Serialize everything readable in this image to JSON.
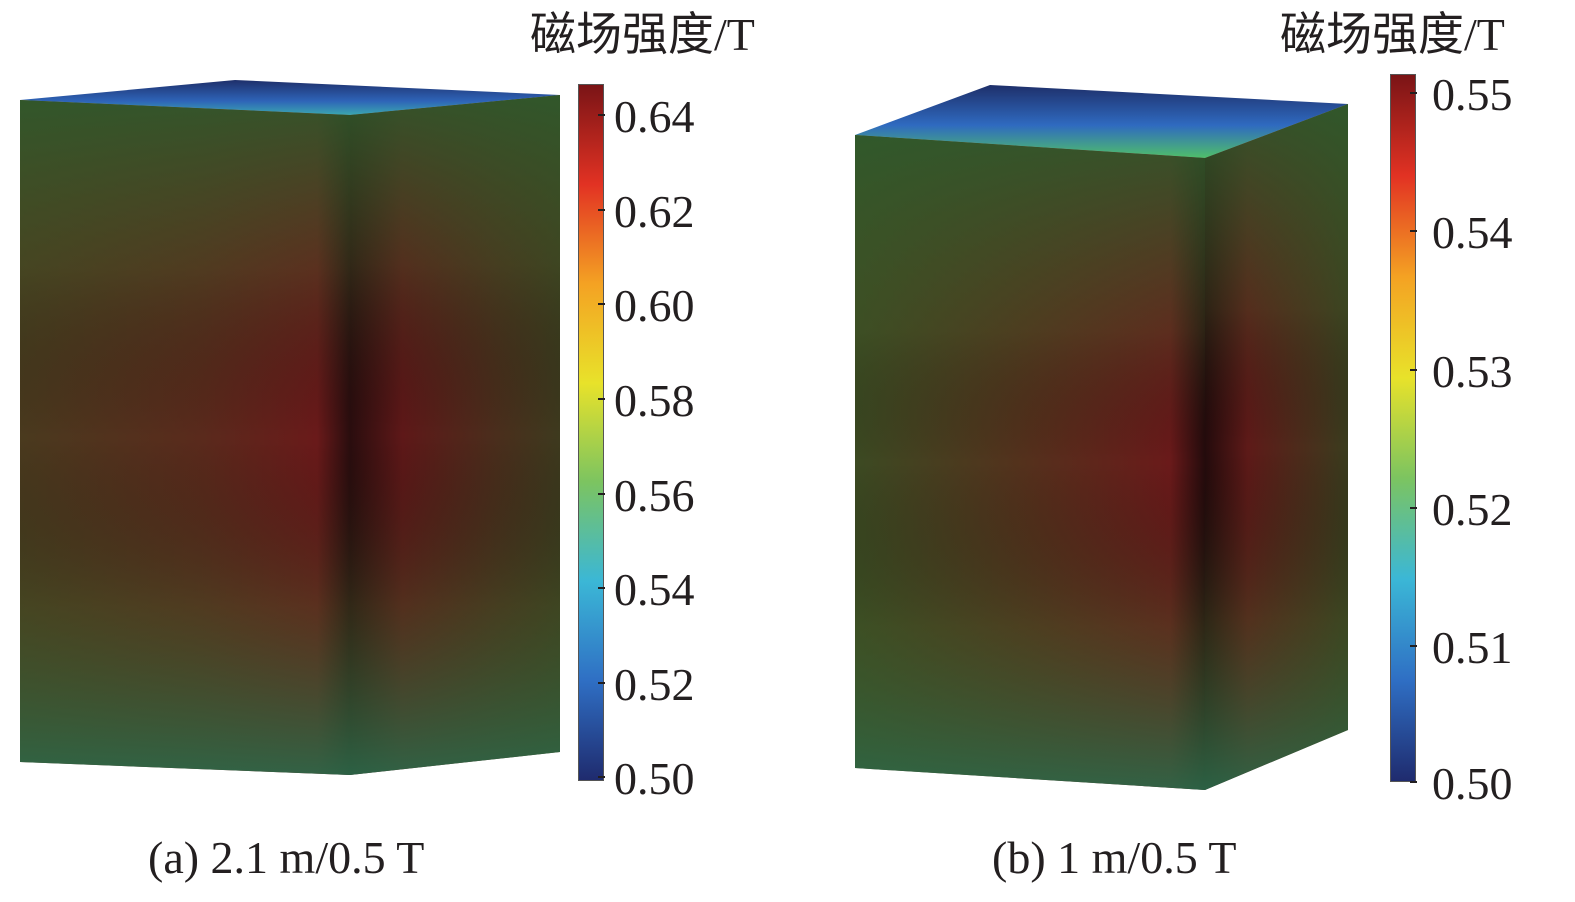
{
  "panel_a": {
    "colorbar_title": "磁场强度/T",
    "ticks": [
      "0.64",
      "0.62",
      "0.60",
      "0.58",
      "0.56",
      "0.54",
      "0.52",
      "0.50"
    ],
    "caption": "(a) 2.1 m/0.5 T"
  },
  "panel_b": {
    "colorbar_title": "磁场强度/T",
    "ticks": [
      "0.55",
      "0.54",
      "0.53",
      "0.52",
      "0.51",
      "0.50"
    ],
    "caption": "(b) 1 m/0.5 T"
  },
  "colormap": [
    "#1f2b6e",
    "#2f6fc4",
    "#3bb7d6",
    "#7cc460",
    "#e8e22a",
    "#f4a223",
    "#e23223",
    "#7a1416"
  ]
}
